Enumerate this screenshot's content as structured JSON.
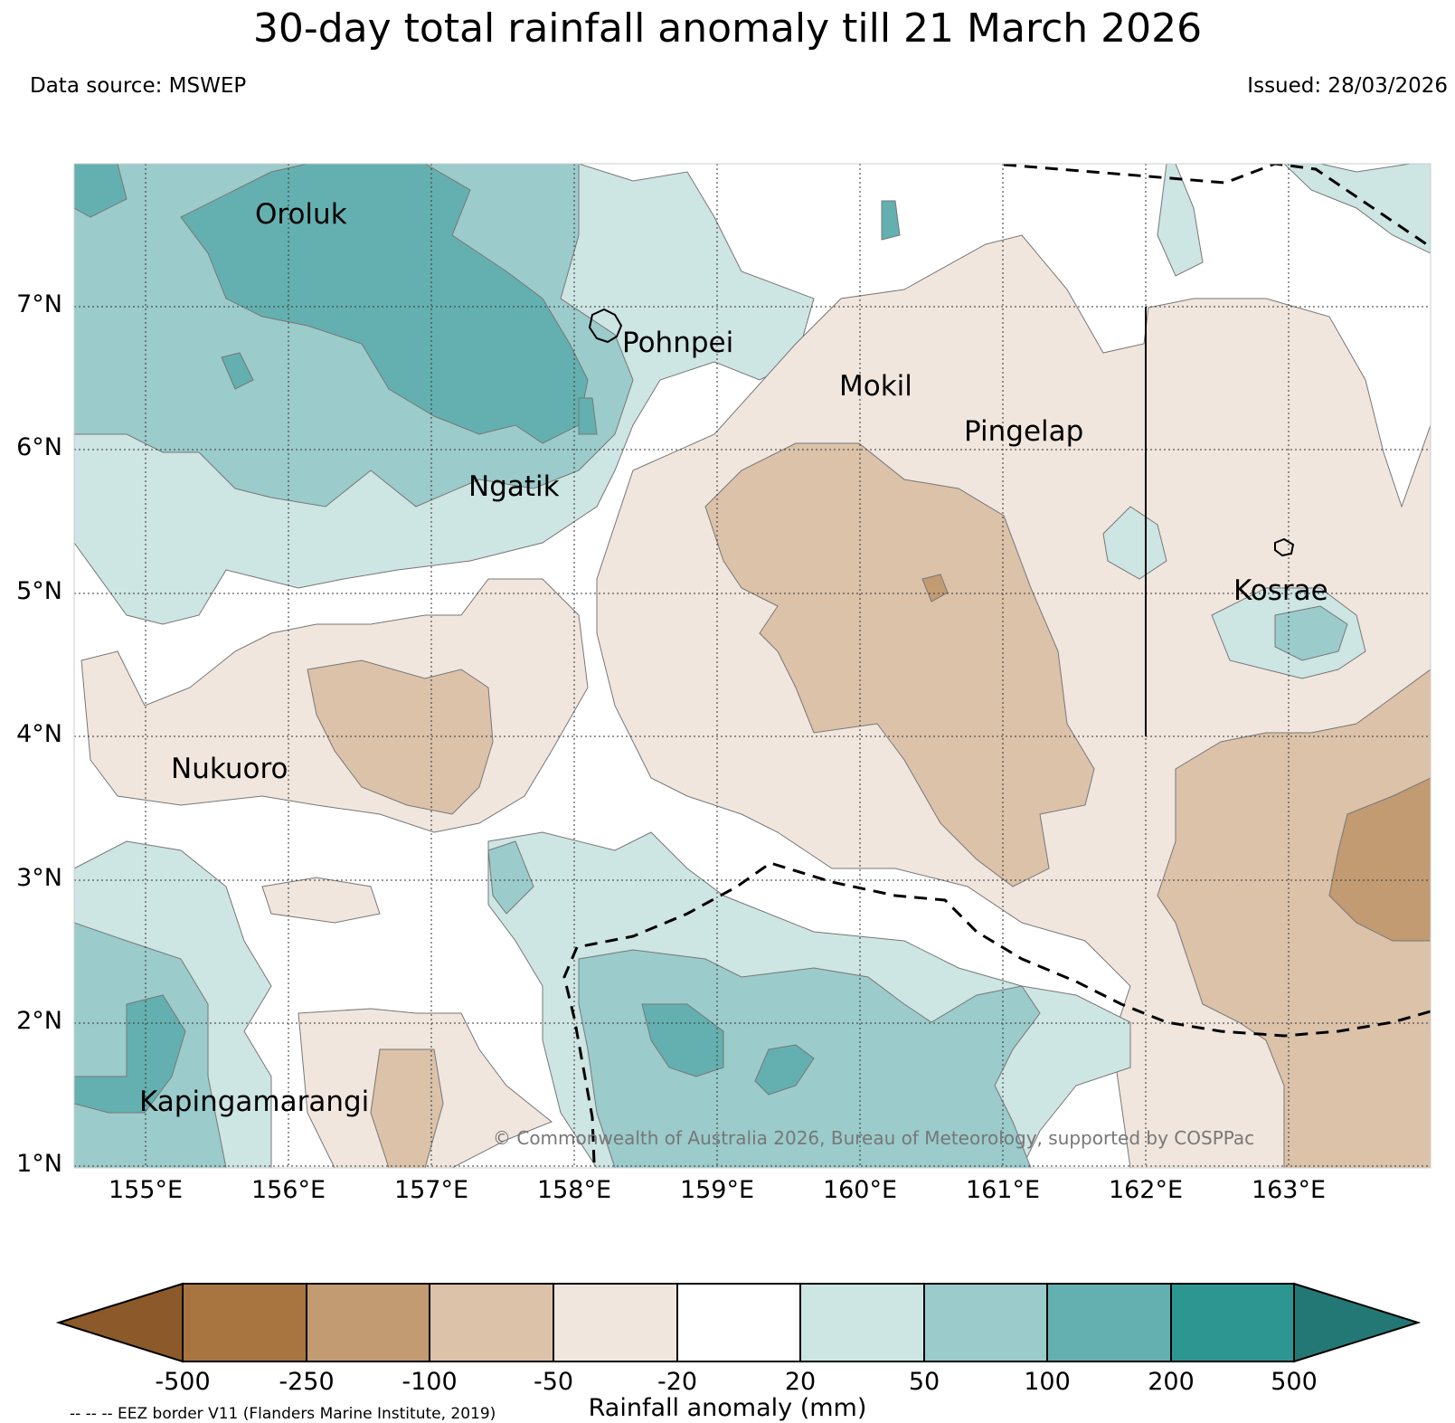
{
  "title": "30-day total rainfall anomaly till 21 March 2026",
  "data_source": "Data source: MSWEP",
  "issued": "Issued: 28/03/2026",
  "copyright": "© Commonwealth of Australia 2026, Bureau of Meteorology, supported by COSPPac",
  "eez_note": "-- -- -- EEZ border V11 (Flanders Marine Institute, 2019)",
  "map": {
    "lon_range": [
      154.5,
      164.0
    ],
    "lat_range": [
      1.0,
      8.0
    ],
    "lat_ticks": [
      "7°N",
      "6°N",
      "5°N",
      "4°N",
      "3°N",
      "2°N",
      "1°N"
    ],
    "lon_ticks": [
      "155°E",
      "156°E",
      "157°E",
      "158°E",
      "159°E",
      "160°E",
      "161°E",
      "162°E",
      "163°E"
    ],
    "places": [
      {
        "name": "Oroluk",
        "lon": 155.78,
        "lat": 7.63
      },
      {
        "name": "Pohnpei",
        "lon": 158.22,
        "lat": 6.88
      },
      {
        "name": "Mokil",
        "lon": 159.78,
        "lat": 6.68
      },
      {
        "name": "Pingelap",
        "lon": 160.7,
        "lat": 6.21
      },
      {
        "name": "Ngatik",
        "lon": 157.27,
        "lat": 5.79
      },
      {
        "name": "Kosrae",
        "lon": 162.98,
        "lat": 5.32
      },
      {
        "name": "Nukuoro",
        "lon": 154.95,
        "lat": 3.85
      },
      {
        "name": "Kapingamarangi",
        "lon": 154.78,
        "lat": 1.07
      }
    ]
  },
  "colorbar": {
    "label": "Rainfall anomaly (mm)",
    "ticks": [
      "-500",
      "-250",
      "-100",
      "-50",
      "-20",
      "20",
      "50",
      "100",
      "200",
      "500"
    ],
    "colors": [
      "#8c5a2a",
      "#a87440",
      "#c29b73",
      "#dbc2a9",
      "#f0e6de",
      "#ffffff",
      "#cde5e3",
      "#9bcbcb",
      "#64b0b0",
      "#2e9690",
      "#237875"
    ]
  },
  "legend_name_colorbar": "rainfall-colorbar"
}
